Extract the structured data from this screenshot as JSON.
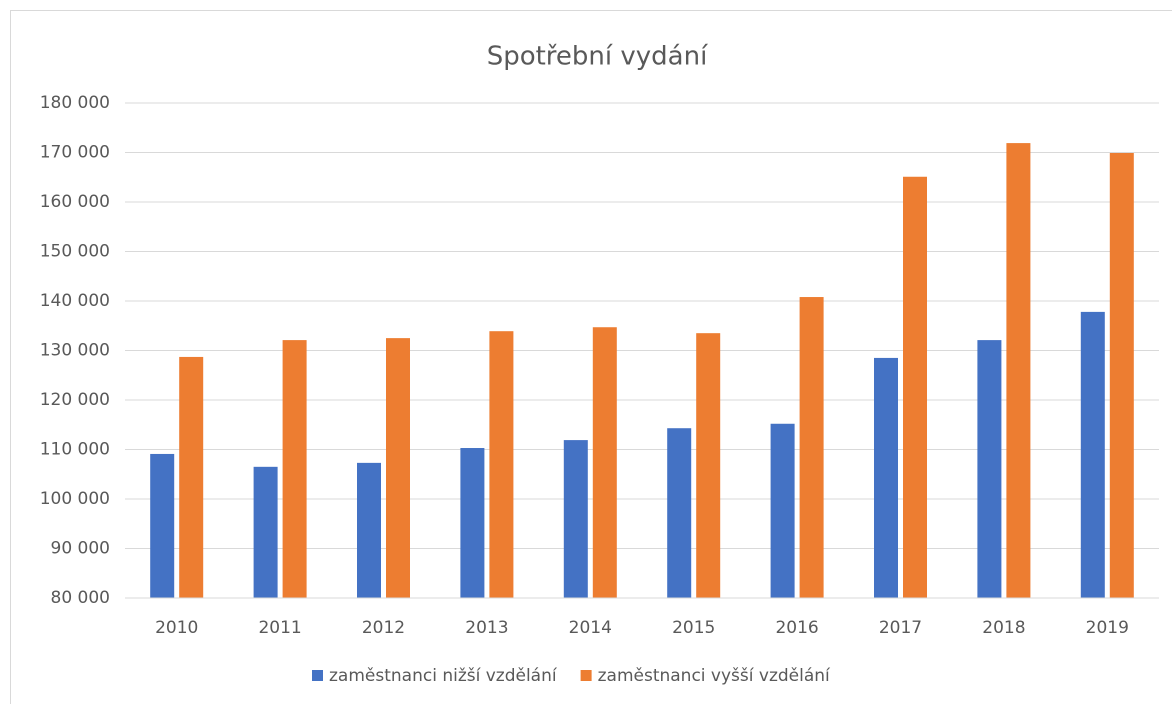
{
  "chart_data": {
    "type": "bar",
    "title": "Spotřební vydání",
    "categories": [
      "2010",
      "2011",
      "2012",
      "2013",
      "2014",
      "2015",
      "2016",
      "2017",
      "2018",
      "2019"
    ],
    "series": [
      {
        "name": "zaměstnanci nižší vzdělání",
        "color": "#4472c4",
        "values": [
          109100,
          106500,
          107300,
          110300,
          111900,
          114300,
          115200,
          128500,
          132100,
          137800
        ]
      },
      {
        "name": "zaměstnanci vyšší vzdělání",
        "color": "#ed7d31",
        "values": [
          128700,
          132100,
          132500,
          133900,
          134700,
          133500,
          140800,
          165100,
          171900,
          169900
        ]
      }
    ],
    "ylim": [
      80000,
      180000
    ],
    "yticks": [
      {
        "value": 80000,
        "label": "80 000"
      },
      {
        "value": 90000,
        "label": "90 000"
      },
      {
        "value": 100000,
        "label": "100 000"
      },
      {
        "value": 110000,
        "label": "110 000"
      },
      {
        "value": 120000,
        "label": "120 000"
      },
      {
        "value": 130000,
        "label": "130 000"
      },
      {
        "value": 140000,
        "label": "140 000"
      },
      {
        "value": 150000,
        "label": "150 000"
      },
      {
        "value": 160000,
        "label": "160 000"
      },
      {
        "value": 170000,
        "label": "170 000"
      },
      {
        "value": 180000,
        "label": "180 000"
      }
    ],
    "grid": true,
    "legend": "bottom"
  }
}
